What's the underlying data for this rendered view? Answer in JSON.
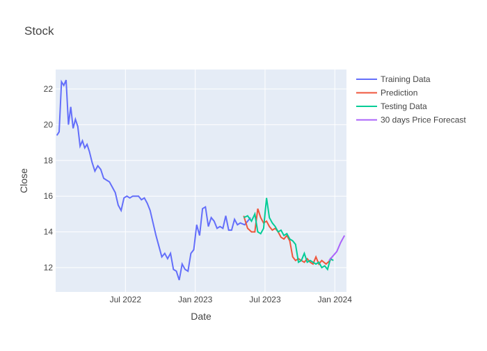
{
  "chart_data": {
    "type": "line",
    "title": "Stock",
    "x_label": "Date",
    "y_label": "Close",
    "xlim": [
      "2022-01",
      "2024-01"
    ],
    "xticks": [
      {
        "value": "2022-07",
        "label": "Jul 2022"
      },
      {
        "value": "2023-01",
        "label": "Jan 2023"
      },
      {
        "value": "2023-07",
        "label": "Jul 2023"
      },
      {
        "value": "2024-01",
        "label": "Jan 2024"
      }
    ],
    "ylim": [
      10.64,
      23.09
    ],
    "yticks": [
      12,
      14,
      16,
      18,
      20,
      22
    ],
    "grid": true,
    "legend": "right",
    "series": [
      {
        "name": "Training Data",
        "color": "#636efa",
        "x": [
          "2022-01",
          "2022-01",
          "2022-01",
          "2022-01",
          "2022-01",
          "2022-02",
          "2022-02",
          "2022-02",
          "2022-02",
          "2022-02",
          "2022-03",
          "2022-03",
          "2022-03",
          "2022-03",
          "2022-03",
          "2022-04",
          "2022-04",
          "2022-04",
          "2022-04",
          "2022-05",
          "2022-05",
          "2022-05",
          "2022-05",
          "2022-06",
          "2022-06",
          "2022-06",
          "2022-06",
          "2022-07",
          "2022-07",
          "2022-07",
          "2022-07",
          "2022-08",
          "2022-08",
          "2022-08",
          "2022-08",
          "2022-09",
          "2022-09",
          "2022-09",
          "2022-09",
          "2022-10",
          "2022-10",
          "2022-10",
          "2022-10",
          "2022-11",
          "2022-11",
          "2022-11",
          "2022-11",
          "2022-12",
          "2022-12",
          "2022-12",
          "2022-12",
          "2023-01",
          "2023-01",
          "2023-01",
          "2023-01",
          "2023-02",
          "2023-02",
          "2023-02",
          "2023-02",
          "2023-03",
          "2023-03",
          "2023-03",
          "2023-03",
          "2023-04",
          "2023-04",
          "2023-04",
          "2023-04",
          "2023-05",
          "2023-05"
        ],
        "values": [
          19.4,
          19.6,
          22.4,
          22.2,
          22.5,
          20.0,
          21.0,
          19.8,
          20.3,
          19.9,
          18.8,
          19.1,
          18.7,
          18.9,
          18.5,
          17.9,
          17.4,
          17.7,
          17.5,
          17.0,
          16.9,
          16.8,
          16.5,
          16.2,
          15.5,
          15.2,
          15.9,
          16.0,
          15.9,
          16.0,
          16.0,
          16.0,
          15.8,
          15.9,
          15.6,
          15.2,
          14.5,
          13.8,
          13.2,
          12.6,
          12.8,
          12.5,
          12.8,
          11.9,
          11.8,
          11.3,
          12.2,
          11.9,
          11.8,
          12.8,
          13.0,
          14.4,
          13.8,
          15.3,
          15.4,
          14.3,
          14.8,
          14.6,
          14.2,
          14.3,
          14.2,
          14.9,
          14.1,
          14.1,
          14.7,
          14.4,
          14.5,
          14.4,
          14.8
        ]
      },
      {
        "name": "Prediction",
        "color": "#ef553b",
        "x": [
          "2023-05",
          "2023-05",
          "2023-05",
          "2023-06",
          "2023-06",
          "2023-06",
          "2023-06",
          "2023-07",
          "2023-07",
          "2023-07",
          "2023-07",
          "2023-08",
          "2023-08",
          "2023-08",
          "2023-08",
          "2023-09",
          "2023-09",
          "2023-09",
          "2023-09",
          "2023-10",
          "2023-10",
          "2023-10",
          "2023-10",
          "2023-11",
          "2023-11",
          "2023-11",
          "2023-11",
          "2023-12",
          "2023-12"
        ],
        "values": [
          14.9,
          14.2,
          14.0,
          14.0,
          15.3,
          14.8,
          14.5,
          14.6,
          14.3,
          14.1,
          14.2,
          14.0,
          13.7,
          13.6,
          13.8,
          13.5,
          12.6,
          12.4,
          12.5,
          12.4,
          12.3,
          12.5,
          12.3,
          12.2,
          12.6,
          12.2,
          12.4,
          12.2,
          12.5
        ]
      },
      {
        "name": "Testing Data",
        "color": "#00cc96",
        "x": [
          "2023-05",
          "2023-05",
          "2023-05",
          "2023-06",
          "2023-06",
          "2023-06",
          "2023-06",
          "2023-07",
          "2023-07",
          "2023-07",
          "2023-07",
          "2023-08",
          "2023-08",
          "2023-08",
          "2023-08",
          "2023-09",
          "2023-09",
          "2023-09",
          "2023-09",
          "2023-10",
          "2023-10",
          "2023-10",
          "2023-10",
          "2023-11",
          "2023-11",
          "2023-11",
          "2023-11",
          "2023-12",
          "2023-12",
          "2023-12",
          "2023-12"
        ],
        "values": [
          14.8,
          14.9,
          14.6,
          15.0,
          14.0,
          13.9,
          14.2,
          15.9,
          14.8,
          14.5,
          14.3,
          14.0,
          14.1,
          13.8,
          13.9,
          13.6,
          13.5,
          13.3,
          12.3,
          12.4,
          12.8,
          12.3,
          12.4,
          12.3,
          12.2,
          12.3,
          12.0,
          12.1,
          11.9,
          12.5,
          12.4
        ]
      },
      {
        "name": "30 days Price Forecast",
        "color": "#ab63fa",
        "x": [
          "2023-12",
          "2024-01",
          "2024-01",
          "2024-01"
        ],
        "values": [
          12.4,
          12.9,
          13.4,
          13.8
        ]
      }
    ]
  }
}
